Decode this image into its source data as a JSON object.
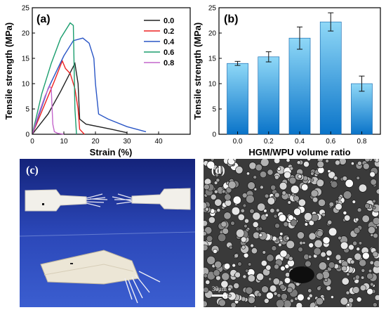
{
  "panel_labels": {
    "a": "(a)",
    "b": "(b)",
    "c": "(c)",
    "d": "(d)"
  },
  "scale_bar_text": "30μm",
  "colors": {
    "s0": "#222222",
    "s02": "#ee2222",
    "s04": "#2a56c6",
    "s06": "#1b9e6e",
    "s08": "#c466cc",
    "bar_top": "#8fd8f7",
    "bar_bottom": "#0a74c9"
  },
  "chart_data": [
    {
      "type": "line",
      "panel": "(a)",
      "xlabel": "Strain (%)",
      "ylabel": "Tensile strength (MPa)",
      "xlim": [
        0,
        50
      ],
      "ylim": [
        0,
        25
      ],
      "xticks": [
        0,
        10,
        20,
        30,
        40
      ],
      "yticks": [
        0,
        5,
        10,
        15,
        20,
        25
      ],
      "legend_position": "top-right",
      "series": [
        {
          "name": "0.0",
          "color": "#222222",
          "x": [
            0,
            5,
            9,
            13.5,
            14.5,
            15,
            17,
            25,
            30
          ],
          "y": [
            0,
            4,
            8.5,
            14,
            10,
            3,
            2,
            1,
            0.3
          ]
        },
        {
          "name": "0.2",
          "color": "#ee2222",
          "x": [
            0,
            4,
            7,
            9.5,
            10.5,
            12,
            13.5,
            14.5,
            15,
            16.5
          ],
          "y": [
            0,
            6,
            10.5,
            14.5,
            13,
            12,
            9,
            5,
            1,
            0
          ]
        },
        {
          "name": "0.4",
          "color": "#2a56c6",
          "x": [
            0,
            5,
            10,
            13,
            16,
            18,
            19.5,
            20,
            21,
            24,
            30,
            36
          ],
          "y": [
            0,
            9,
            15.5,
            18.5,
            19,
            18,
            15,
            10,
            4,
            3,
            1.5,
            0.5
          ]
        },
        {
          "name": "0.6",
          "color": "#1b9e6e",
          "x": [
            0,
            3,
            6,
            9,
            12,
            13,
            13.5,
            14
          ],
          "y": [
            0,
            8,
            14,
            19,
            22,
            21.5,
            5,
            0
          ]
        },
        {
          "name": "0.8",
          "color": "#c466cc",
          "x": [
            0,
            2,
            4,
            5.5,
            6,
            6.5,
            7,
            8,
            10
          ],
          "y": [
            0,
            4,
            7.5,
            9.5,
            9,
            2,
            0.5,
            0.2,
            0
          ]
        }
      ]
    },
    {
      "type": "bar",
      "panel": "(b)",
      "xlabel": "HGM/WPU volume ratio",
      "ylabel": "Tensile strength (MPa)",
      "categories": [
        "0.0",
        "0.2",
        "0.4",
        "0.6",
        "0.8"
      ],
      "values": [
        14.0,
        15.3,
        19.0,
        22.2,
        10.0
      ],
      "errors": [
        0.4,
        1.0,
        2.2,
        1.8,
        1.5
      ],
      "ylim": [
        0,
        25
      ],
      "yticks": [
        0,
        5,
        10,
        15,
        20,
        25
      ]
    }
  ]
}
